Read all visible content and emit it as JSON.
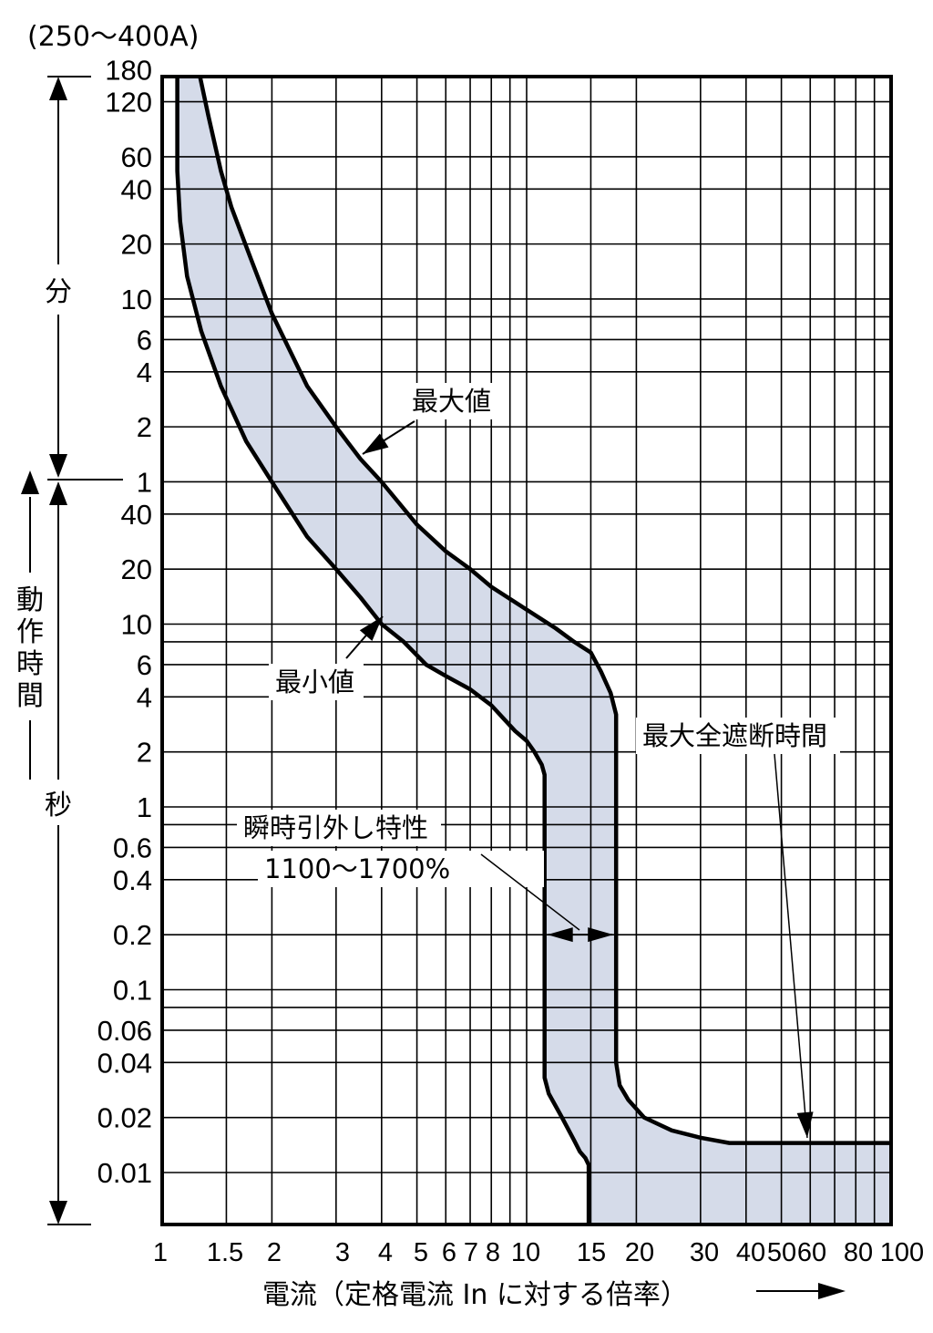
{
  "chart_data": {
    "type": "area",
    "subtitle": "(250〜400A)",
    "xlabel": "電流（定格電流 In に対する倍率）",
    "xscale": "log",
    "xlim": [
      1,
      100
    ],
    "x_ticks": [
      {
        "v": 1,
        "label": "1"
      },
      {
        "v": 1.5,
        "label": "1.5"
      },
      {
        "v": 2,
        "label": "2"
      },
      {
        "v": 3,
        "label": "3"
      },
      {
        "v": 4,
        "label": "4"
      },
      {
        "v": 5,
        "label": "5"
      },
      {
        "v": 6,
        "label": "6"
      },
      {
        "v": 7,
        "label": "7"
      },
      {
        "v": 8,
        "label": "8"
      },
      {
        "v": 10,
        "label": "10"
      },
      {
        "v": 15,
        "label": "15"
      },
      {
        "v": 20,
        "label": "20"
      },
      {
        "v": 30,
        "label": "30"
      },
      {
        "v": 40,
        "label": "40"
      },
      {
        "v": 50,
        "label": "50"
      },
      {
        "v": 60,
        "label": "60"
      },
      {
        "v": 80,
        "label": "80"
      },
      {
        "v": 100,
        "label": "100"
      }
    ],
    "yscale": "log",
    "ylim_seconds": [
      0.005,
      10800
    ],
    "y_ticks": [
      {
        "sec": 10800,
        "label": "180"
      },
      {
        "sec": 7200,
        "label": "120"
      },
      {
        "sec": 3600,
        "label": "60"
      },
      {
        "sec": 2400,
        "label": "40"
      },
      {
        "sec": 1200,
        "label": "20"
      },
      {
        "sec": 600,
        "label": "10"
      },
      {
        "sec": 360,
        "label": "6"
      },
      {
        "sec": 240,
        "label": "4"
      },
      {
        "sec": 120,
        "label": "2"
      },
      {
        "sec": 60,
        "label": "1"
      },
      {
        "sec": 40,
        "label": "40"
      },
      {
        "sec": 20,
        "label": "20"
      },
      {
        "sec": 10,
        "label": "10"
      },
      {
        "sec": 6,
        "label": "6"
      },
      {
        "sec": 4,
        "label": "4"
      },
      {
        "sec": 2,
        "label": "2"
      },
      {
        "sec": 1,
        "label": "1"
      },
      {
        "sec": 0.6,
        "label": "0.6"
      },
      {
        "sec": 0.4,
        "label": "0.4"
      },
      {
        "sec": 0.2,
        "label": "0.2"
      },
      {
        "sec": 0.1,
        "label": "0.1"
      },
      {
        "sec": 0.06,
        "label": "0.06"
      },
      {
        "sec": 0.04,
        "label": "0.04"
      },
      {
        "sec": 0.02,
        "label": "0.02"
      },
      {
        "sec": 0.01,
        "label": "0.01"
      }
    ],
    "y_units": [
      {
        "label": "分",
        "range_seconds": [
          60,
          10800
        ]
      },
      {
        "label": "秒",
        "range_seconds": [
          0.005,
          60
        ]
      }
    ],
    "y_axis_title": "動作時間",
    "grid": true,
    "series": [
      {
        "name": "最大値",
        "x": [
          1.27,
          1.34,
          1.45,
          1.55,
          1.75,
          2.0,
          2.5,
          3.0,
          3.5,
          4.0,
          5.0,
          6.0,
          7.0,
          8.0,
          10.0,
          12.0,
          13.5,
          15.0,
          16.0,
          17.0,
          17.6,
          17.6,
          18.0,
          19.0,
          21.0,
          25.0,
          30.0,
          36.0,
          50.0,
          70.0,
          100.0
        ],
        "y": [
          10800,
          6000,
          3000,
          1900,
          1000,
          500,
          200,
          120,
          80,
          60,
          35,
          25,
          20,
          16,
          12,
          9.5,
          8,
          7,
          5.5,
          4.2,
          3.2,
          0.04,
          0.03,
          0.025,
          0.02,
          0.017,
          0.0155,
          0.0145,
          0.0145,
          0.0145,
          0.0145
        ]
      },
      {
        "name": "最小値",
        "x": [
          1.1,
          1.1,
          1.12,
          1.17,
          1.28,
          1.45,
          1.7,
          2.0,
          2.5,
          3.0,
          3.5,
          4.0,
          4.6,
          5.3,
          6.0,
          7.0,
          8.0,
          8.7,
          9.3,
          10.0,
          10.5,
          11.0,
          11.2,
          11.2,
          11.5,
          12.5,
          13.5,
          14.0,
          14.5,
          14.8,
          14.8
        ],
        "y": [
          10800,
          3000,
          1600,
          800,
          400,
          200,
          100,
          60,
          30,
          20,
          14,
          10,
          8,
          6,
          5.2,
          4.4,
          3.6,
          3.0,
          2.6,
          2.3,
          2.0,
          1.7,
          1.5,
          0.033,
          0.027,
          0.02,
          0.015,
          0.013,
          0.012,
          0.011,
          0.005
        ]
      }
    ],
    "annotations": [
      {
        "text": "最大値",
        "points_to": "最大値"
      },
      {
        "text": "最小値",
        "points_to": "最小値"
      },
      {
        "text": "最大全遮断時間",
        "points_to": "horizontal tail of 最大値"
      },
      {
        "text": "瞬時引外し特性",
        "value": "1100〜1700%"
      }
    ],
    "band_color": "#d5dbe9",
    "curve_color": "#000000"
  }
}
